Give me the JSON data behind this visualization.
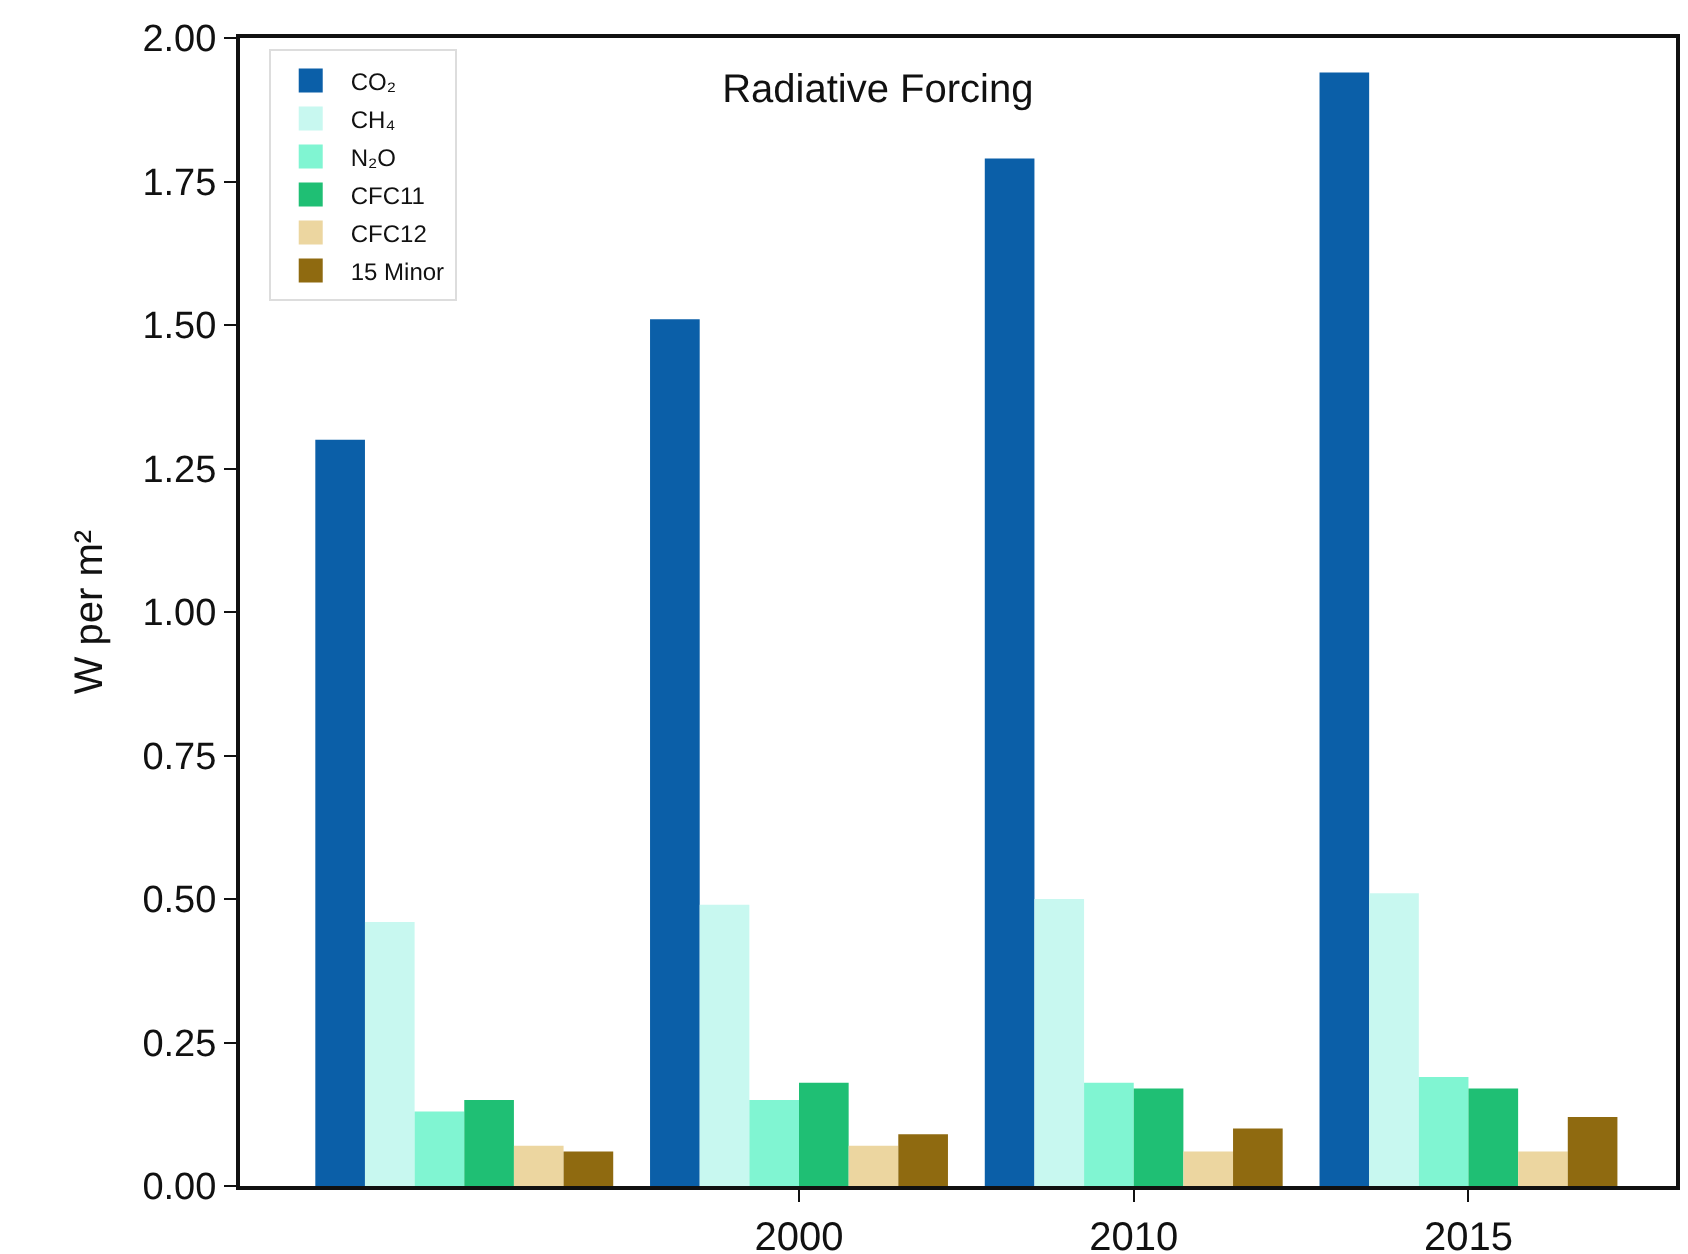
{
  "chart_data": {
    "type": "bar",
    "title": "Radiative Forcing",
    "ylabel": "W per m²",
    "categories": [
      null,
      "2000",
      "2010",
      "2015"
    ],
    "ylim": [
      0,
      2
    ],
    "yticks": [
      {
        "value": 0,
        "label": "0.00"
      },
      {
        "value": 0.25,
        "label": "0.25"
      },
      {
        "value": 0.5,
        "label": "0.50"
      },
      {
        "value": 0.75,
        "label": "0.75"
      },
      {
        "value": 1,
        "label": "1.00"
      },
      {
        "value": 1.25,
        "label": "1.25"
      },
      {
        "value": 1.5,
        "label": "1.50"
      },
      {
        "value": 1.75,
        "label": "1.75"
      },
      {
        "value": 2,
        "label": "2.00"
      }
    ],
    "grid": false,
    "legend": "top left",
    "series": [
      {
        "name": "CO₂",
        "color": "#0b5fa8",
        "values": [
          1.3,
          1.51,
          1.79,
          1.94
        ]
      },
      {
        "name": "CH₄",
        "color": "#c8f8f0",
        "values": [
          0.46,
          0.49,
          0.5,
          0.51
        ]
      },
      {
        "name": "N₂O",
        "color": "#80f5d2",
        "values": [
          0.13,
          0.15,
          0.18,
          0.19
        ]
      },
      {
        "name": "CFC11",
        "color": "#1fbf74",
        "values": [
          0.15,
          0.18,
          0.17,
          0.17
        ]
      },
      {
        "name": "CFC12",
        "color": "#ecd6a0",
        "values": [
          0.07,
          0.07,
          0.06,
          0.06
        ]
      },
      {
        "name": "15 Minor",
        "color": "#8f6a10",
        "values": [
          0.06,
          0.09,
          0.1,
          0.12
        ]
      }
    ]
  }
}
